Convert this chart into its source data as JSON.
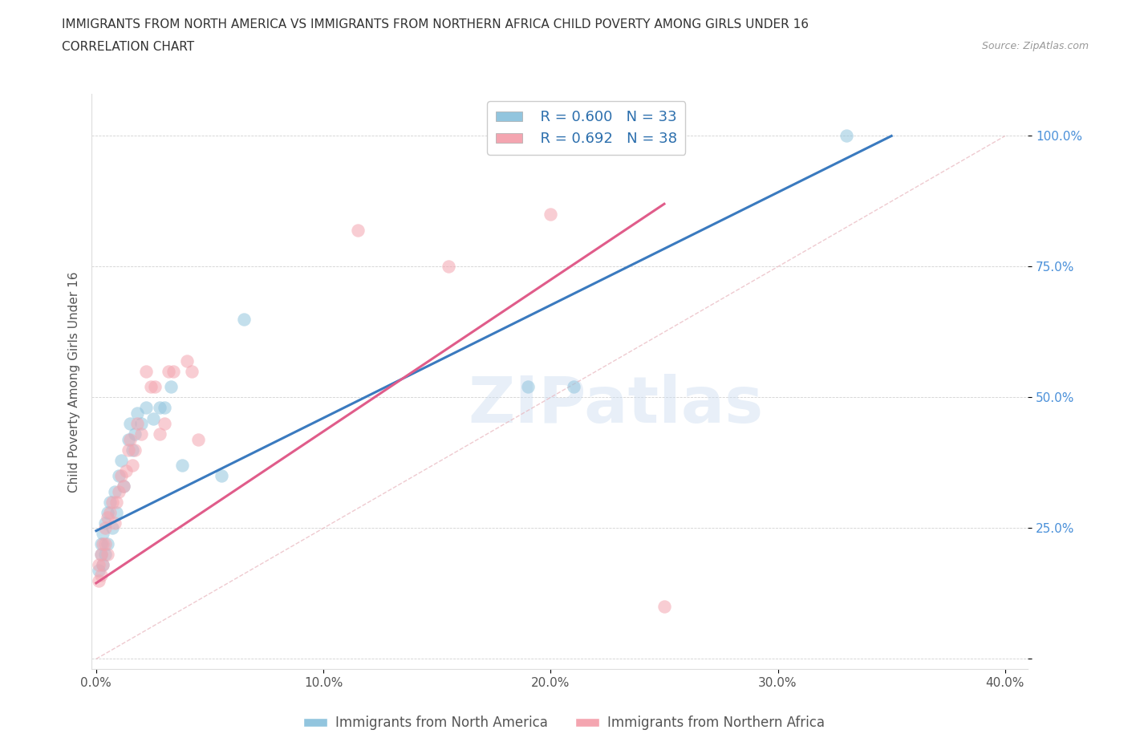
{
  "title_line1": "IMMIGRANTS FROM NORTH AMERICA VS IMMIGRANTS FROM NORTHERN AFRICA CHILD POVERTY AMONG GIRLS UNDER 16",
  "title_line2": "CORRELATION CHART",
  "source": "Source: ZipAtlas.com",
  "ylabel": "Child Poverty Among Girls Under 16",
  "xlim": [
    -0.002,
    0.41
  ],
  "ylim": [
    -0.02,
    1.08
  ],
  "xticks": [
    0.0,
    0.1,
    0.2,
    0.3,
    0.4
  ],
  "xtick_labels": [
    "0.0%",
    "10.0%",
    "20.0%",
    "30.0%",
    "40.0%"
  ],
  "yticks": [
    0.0,
    0.25,
    0.5,
    0.75,
    1.0
  ],
  "ytick_labels": [
    "",
    "25.0%",
    "50.0%",
    "75.0%",
    "100.0%"
  ],
  "blue_R": 0.6,
  "blue_N": 33,
  "pink_R": 0.692,
  "pink_N": 38,
  "legend_label_blue": "Immigrants from North America",
  "legend_label_pink": "Immigrants from Northern Africa",
  "blue_color": "#92c5de",
  "pink_color": "#f4a5b0",
  "blue_line_color": "#3a7abf",
  "pink_line_color": "#e05c8a",
  "ref_line_color": "#d4a0a8",
  "watermark": "ZIPatlas",
  "blue_scatter_x": [
    0.001,
    0.002,
    0.002,
    0.003,
    0.003,
    0.004,
    0.004,
    0.005,
    0.005,
    0.006,
    0.007,
    0.008,
    0.009,
    0.01,
    0.011,
    0.012,
    0.014,
    0.015,
    0.016,
    0.017,
    0.018,
    0.02,
    0.022,
    0.025,
    0.028,
    0.03,
    0.033,
    0.038,
    0.055,
    0.065,
    0.19,
    0.21,
    0.33
  ],
  "blue_scatter_y": [
    0.17,
    0.2,
    0.22,
    0.18,
    0.24,
    0.2,
    0.26,
    0.22,
    0.28,
    0.3,
    0.25,
    0.32,
    0.28,
    0.35,
    0.38,
    0.33,
    0.42,
    0.45,
    0.4,
    0.43,
    0.47,
    0.45,
    0.48,
    0.46,
    0.48,
    0.48,
    0.52,
    0.37,
    0.35,
    0.65,
    0.52,
    0.52,
    1.0
  ],
  "pink_scatter_x": [
    0.001,
    0.001,
    0.002,
    0.002,
    0.003,
    0.003,
    0.004,
    0.004,
    0.005,
    0.005,
    0.006,
    0.007,
    0.008,
    0.009,
    0.01,
    0.011,
    0.012,
    0.013,
    0.014,
    0.015,
    0.016,
    0.017,
    0.018,
    0.02,
    0.022,
    0.024,
    0.026,
    0.028,
    0.03,
    0.032,
    0.034,
    0.04,
    0.042,
    0.045,
    0.115,
    0.155,
    0.2,
    0.25
  ],
  "pink_scatter_y": [
    0.15,
    0.18,
    0.16,
    0.2,
    0.18,
    0.22,
    0.22,
    0.25,
    0.2,
    0.27,
    0.28,
    0.3,
    0.26,
    0.3,
    0.32,
    0.35,
    0.33,
    0.36,
    0.4,
    0.42,
    0.37,
    0.4,
    0.45,
    0.43,
    0.55,
    0.52,
    0.52,
    0.43,
    0.45,
    0.55,
    0.55,
    0.57,
    0.55,
    0.42,
    0.82,
    0.75,
    0.85,
    0.1
  ],
  "blue_line_x0": 0.0,
  "blue_line_y0": 0.245,
  "blue_line_x1": 0.35,
  "blue_line_y1": 1.0,
  "pink_line_x0": 0.0,
  "pink_line_y0": 0.145,
  "pink_line_x1": 0.25,
  "pink_line_y1": 0.87
}
